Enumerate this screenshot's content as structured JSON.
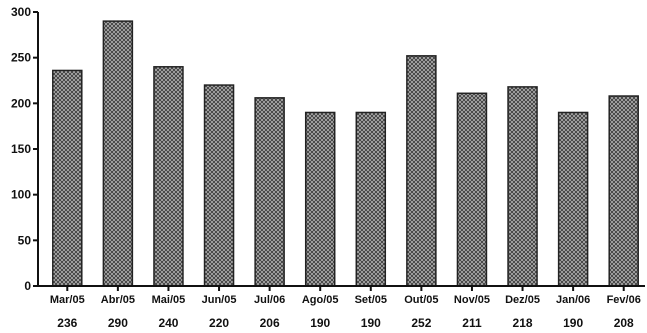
{
  "chart_data": {
    "type": "bar",
    "title": "",
    "xlabel": "",
    "ylabel": "",
    "ylim": [
      0,
      300
    ],
    "yticks": [
      "0",
      "50",
      "100",
      "150",
      "200",
      "250",
      "300"
    ],
    "categories": [
      "Mar/05",
      "Abr/05",
      "Mai/05",
      "Jun/05",
      "Jul/06",
      "Ago/05",
      "Set/05",
      "Out/05",
      "Nov/05",
      "Dez/05",
      "Jan/06",
      "Fev/06"
    ],
    "values": [
      236,
      290,
      240,
      220,
      206,
      190,
      190,
      252,
      211,
      218,
      190,
      208
    ],
    "value_labels": [
      "236",
      "290",
      "240",
      "220",
      "206",
      "190",
      "190",
      "252",
      "211",
      "218",
      "190",
      "208"
    ],
    "grid": false,
    "legend": "none",
    "bar_color": "#8a8a8a",
    "bar_pattern": "crosshatch"
  }
}
